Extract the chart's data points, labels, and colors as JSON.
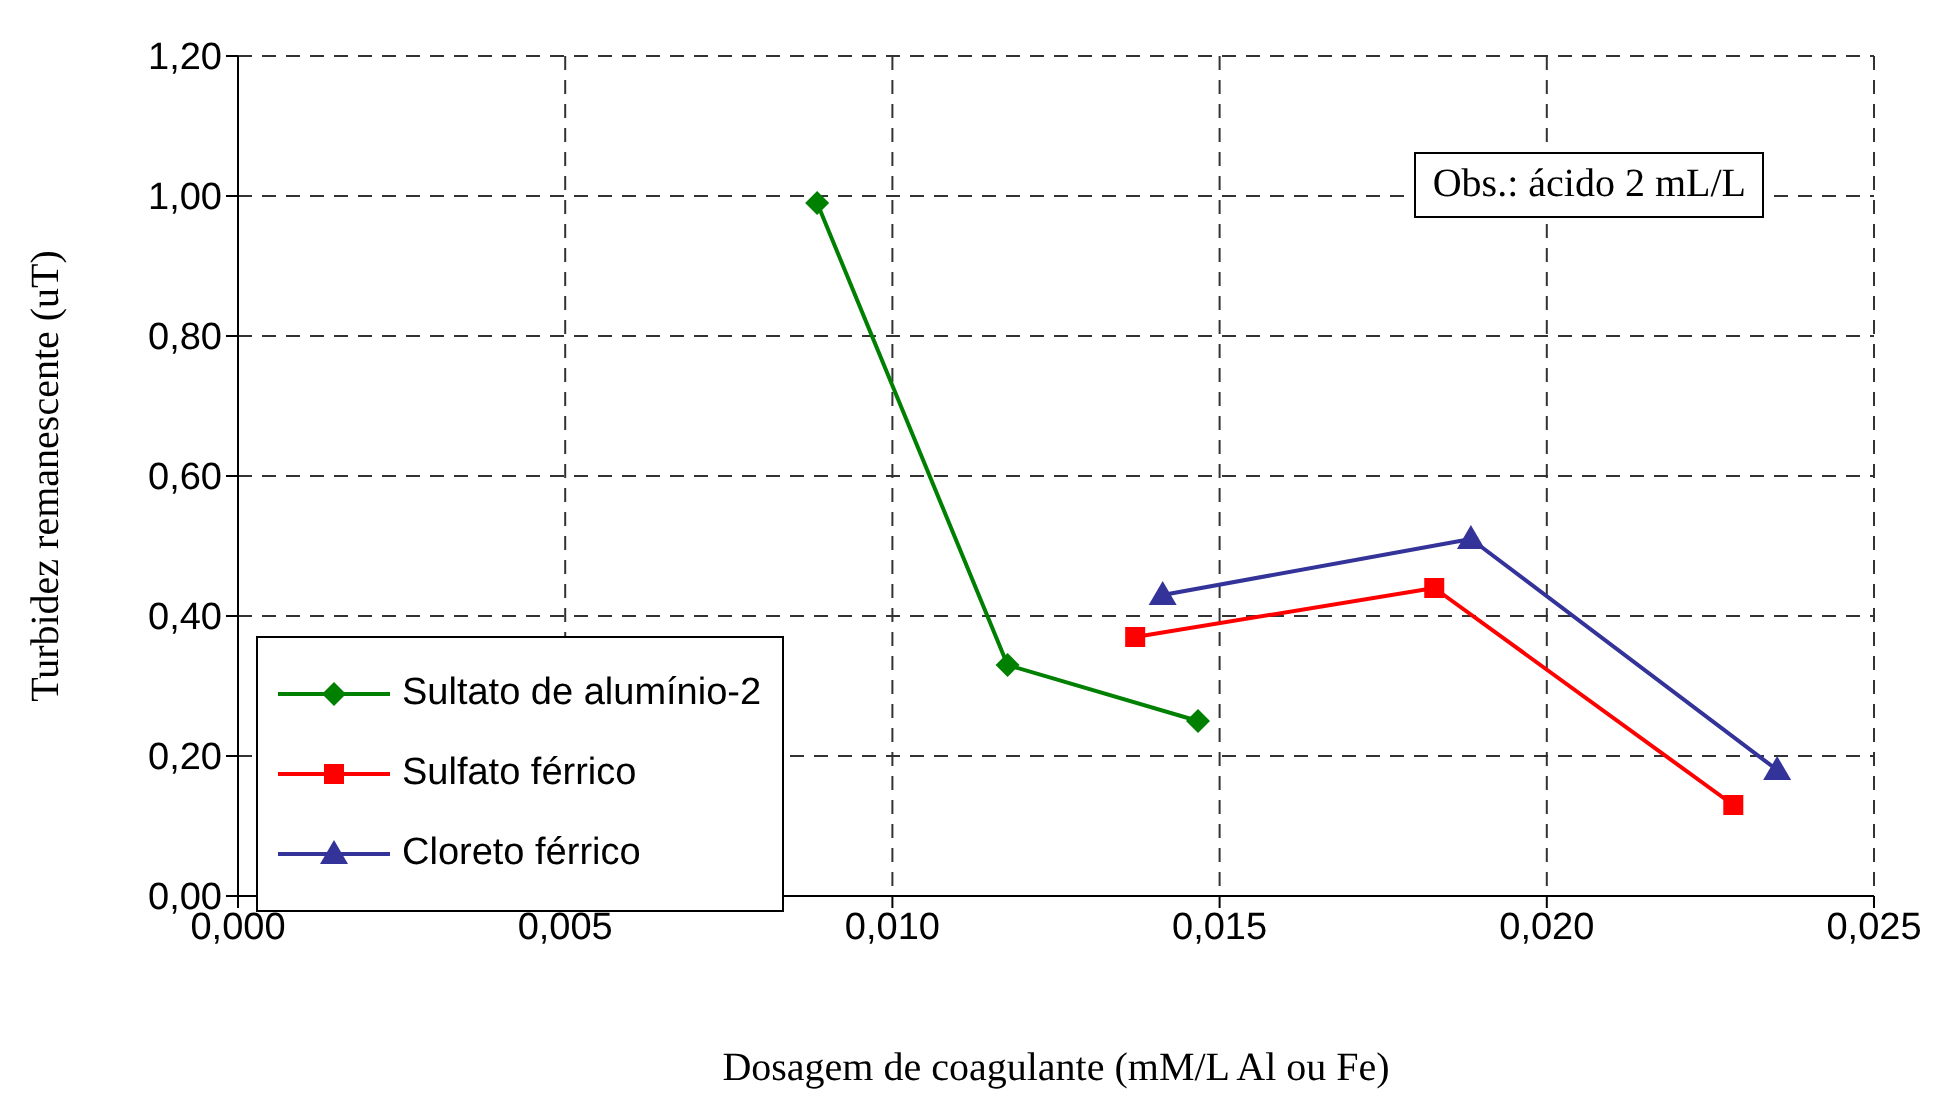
{
  "chart_data": {
    "type": "line",
    "xlabel": "Dosagem de coagulante (mM/L Al ou Fe)",
    "ylabel": "Turbidez remanescente (uT)",
    "annotations": [
      "Obs.: ácido 2 mL/L"
    ],
    "xlim": [
      0,
      0.025
    ],
    "xticks": [
      {
        "value": 0,
        "label": "0,000"
      },
      {
        "value": 0.005,
        "label": "0,005"
      },
      {
        "value": 0.01,
        "label": "0,010"
      },
      {
        "value": 0.015,
        "label": "0,015"
      },
      {
        "value": 0.02,
        "label": "0,020"
      },
      {
        "value": 0.025,
        "label": "0,025"
      }
    ],
    "ylim": [
      0,
      1.2
    ],
    "yticks": [
      {
        "value": 0,
        "label": "0,00"
      },
      {
        "value": 0.2,
        "label": "0,20"
      },
      {
        "value": 0.4,
        "label": "0,40"
      },
      {
        "value": 0.6,
        "label": "0,60"
      },
      {
        "value": 0.8,
        "label": "0,80"
      },
      {
        "value": 1,
        "label": "1,00"
      },
      {
        "value": 1.2,
        "label": "1,20"
      }
    ],
    "grid": true,
    "legend": "bottom left",
    "line_style": "solid",
    "series": [
      {
        "name": "Sultato de alumínio-2",
        "color": "#008000",
        "marker": "diamond",
        "x": [
          0.00885,
          0.01176,
          0.01467
        ],
        "values": [
          0.99,
          0.33,
          0.25
        ]
      },
      {
        "name": "Sulfato férrico",
        "color": "#ff0000",
        "marker": "square",
        "x": [
          0.01371,
          0.01828,
          0.02285
        ],
        "values": [
          0.37,
          0.44,
          0.13
        ]
      },
      {
        "name": "Cloreto férrico",
        "color": "#333399",
        "marker": "triangle",
        "x": [
          0.01413,
          0.01884,
          0.02352
        ],
        "values": [
          0.43,
          0.51,
          0.18
        ]
      }
    ]
  }
}
